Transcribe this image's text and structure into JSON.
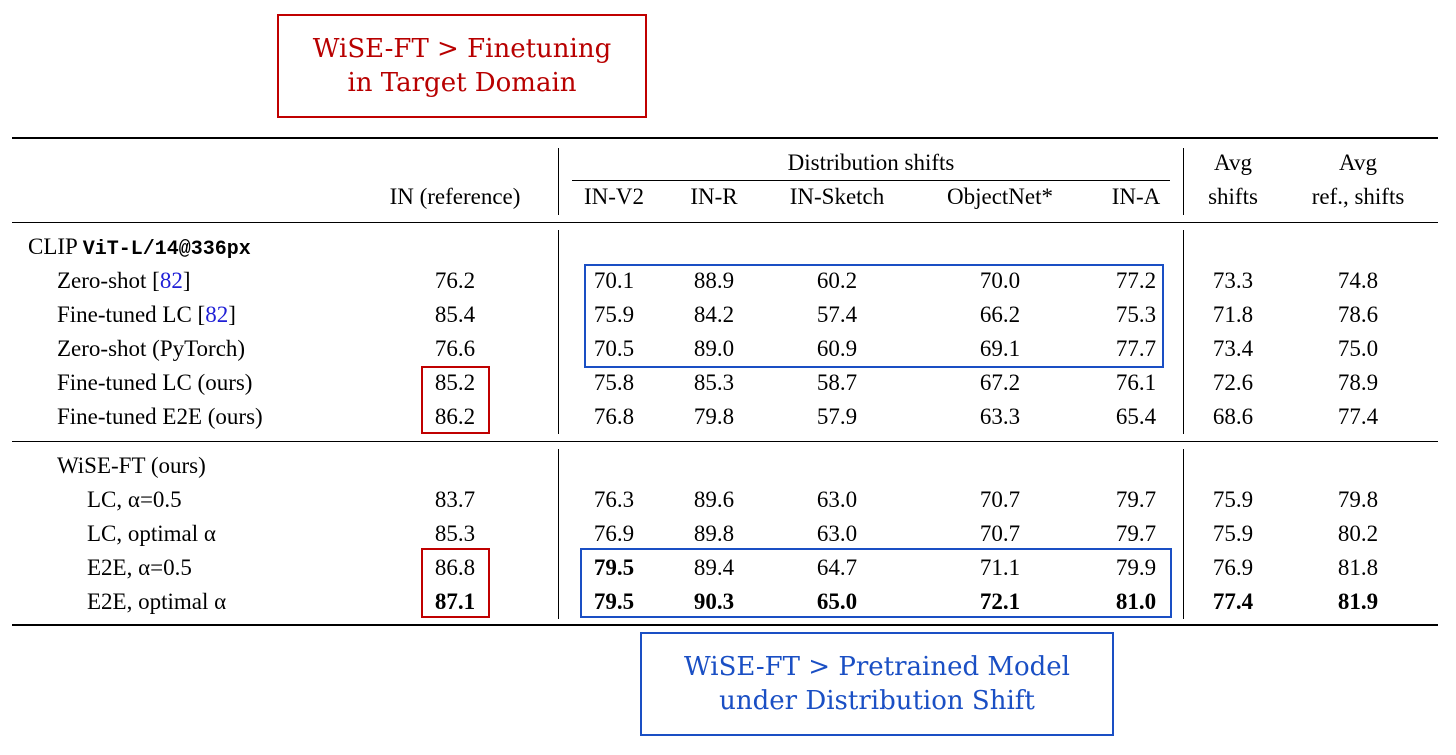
{
  "callouts": {
    "top": [
      "WiSE-FT > Finetuning",
      "in Target Domain"
    ],
    "bottom": [
      "WiSE-FT > Pretrained Model",
      "under Distribution Shift"
    ]
  },
  "header": {
    "distribution_shifts": "Distribution shifts",
    "columns": [
      "IN (reference)",
      "IN-V2",
      "IN-R",
      "IN-Sketch",
      "ObjectNet*",
      "IN-A"
    ],
    "avg_shifts": [
      "Avg",
      "shifts"
    ],
    "avg_ref_shifts": [
      "Avg",
      "ref., shifts"
    ]
  },
  "section1": {
    "title_prefix": "CLIP",
    "title_model": "ViT-L/14@336px",
    "rows": [
      {
        "label": "Zero-shot [",
        "ref": "82",
        "suffix": "]",
        "values": [
          "76.2",
          "70.1",
          "88.9",
          "60.2",
          "70.0",
          "77.2",
          "73.3",
          "74.8"
        ]
      },
      {
        "label": "Fine-tuned LC [",
        "ref": "82",
        "suffix": "]",
        "values": [
          "85.4",
          "75.9",
          "84.2",
          "57.4",
          "66.2",
          "75.3",
          "71.8",
          "78.6"
        ]
      },
      {
        "label": "Zero-shot (PyTorch)",
        "ref": "",
        "suffix": "",
        "values": [
          "76.6",
          "70.5",
          "89.0",
          "60.9",
          "69.1",
          "77.7",
          "73.4",
          "75.0"
        ]
      },
      {
        "label": "Fine-tuned LC (ours)",
        "ref": "",
        "suffix": "",
        "values": [
          "85.2",
          "75.8",
          "85.3",
          "58.7",
          "67.2",
          "76.1",
          "72.6",
          "78.9"
        ]
      },
      {
        "label": "Fine-tuned E2E (ours)",
        "ref": "",
        "suffix": "",
        "values": [
          "86.2",
          "76.8",
          "79.8",
          "57.9",
          "63.3",
          "65.4",
          "68.6",
          "77.4"
        ]
      }
    ]
  },
  "section2": {
    "title": "WiSE-FT (ours)",
    "rows": [
      {
        "label": "LC, α=0.5",
        "values": [
          "83.7",
          "76.3",
          "89.6",
          "63.0",
          "70.7",
          "79.7",
          "75.9",
          "79.8"
        ]
      },
      {
        "label": "LC, optimal α",
        "values": [
          "85.3",
          "76.9",
          "89.8",
          "63.0",
          "70.7",
          "79.7",
          "75.9",
          "80.2"
        ]
      },
      {
        "label": "E2E, α=0.5",
        "values": [
          "86.8",
          "79.5",
          "89.4",
          "64.7",
          "71.1",
          "79.9",
          "76.9",
          "81.8"
        ]
      },
      {
        "label": "E2E, optimal α",
        "values": [
          "87.1",
          "79.5",
          "90.3",
          "65.0",
          "72.1",
          "81.0",
          "77.4",
          "81.9"
        ]
      }
    ]
  },
  "colors": {
    "red": "#c00000",
    "blue": "#1a4fc4",
    "ref": "#1f1fd6"
  }
}
